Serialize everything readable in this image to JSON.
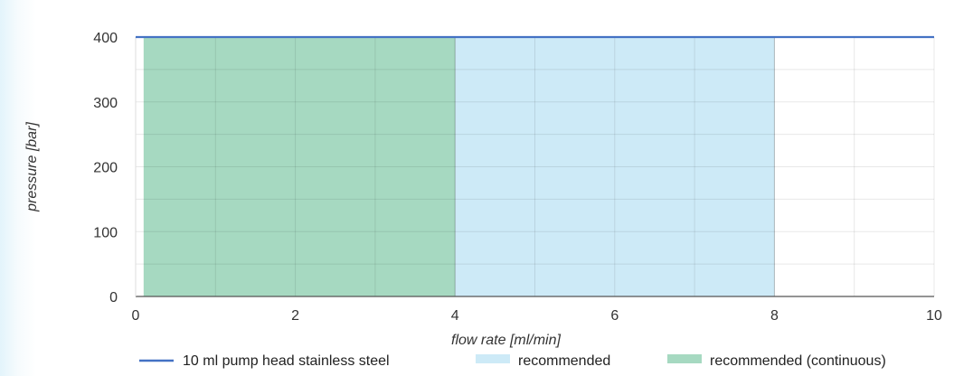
{
  "chart_data": {
    "type": "line",
    "title": "",
    "xlabel": "flow rate [ml/min]",
    "ylabel": "pressure [bar]",
    "xlim": [
      0,
      10
    ],
    "ylim": [
      0,
      400
    ],
    "x_ticks": [
      0,
      2,
      4,
      6,
      8,
      10
    ],
    "y_ticks": [
      0,
      100,
      200,
      300,
      400
    ],
    "grid": true,
    "legend_position": "bottom",
    "series": [
      {
        "name": "10 ml pump head stainless steel",
        "kind": "line",
        "x": [
          0,
          10
        ],
        "y": [
          400,
          400
        ],
        "color": "#4472c4"
      },
      {
        "name": "recommended",
        "kind": "area",
        "x": [
          4,
          8
        ],
        "y": [
          400,
          400
        ],
        "color": "#cdeaf7"
      },
      {
        "name": "recommended (continuous)",
        "kind": "area",
        "x": [
          0.1,
          4
        ],
        "y": [
          400,
          400
        ],
        "color": "#a6d9c1"
      }
    ]
  }
}
